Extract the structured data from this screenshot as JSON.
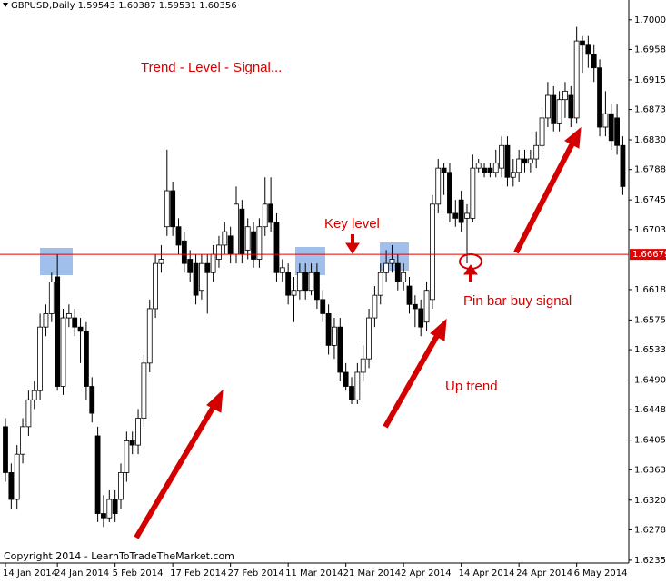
{
  "chart_data": {
    "type": "candlestick",
    "title": "GBPUSD,Daily 1.59543 1.60387 1.59531 1.60356",
    "annotations": [
      "Trend - Level - Signal...",
      "Key level",
      "Pin bar buy signal",
      "Up trend"
    ],
    "copyright": "Copyright 2014 - LearnToTradeTheMarket.com",
    "categories": [
      "14 Jan 2014",
      null,
      null,
      null,
      null,
      null,
      null,
      null,
      null,
      "24 Jan 2014",
      null,
      null,
      null,
      null,
      null,
      null,
      null,
      null,
      null,
      "5 Feb 2014",
      null,
      null,
      null,
      null,
      null,
      null,
      null,
      null,
      null,
      "17 Feb 2014",
      null,
      null,
      null,
      null,
      null,
      null,
      null,
      null,
      null,
      "27 Feb 2014",
      null,
      null,
      null,
      null,
      null,
      null,
      null,
      null,
      null,
      "11 Mar 2014",
      null,
      null,
      null,
      null,
      null,
      null,
      null,
      null,
      null,
      "21 Mar 2014",
      null,
      null,
      null,
      null,
      null,
      null,
      null,
      null,
      null,
      "2 Apr 2014",
      null,
      null,
      null,
      null,
      null,
      null,
      null,
      null,
      null,
      "14 Apr 2014",
      null,
      null,
      null,
      null,
      null,
      null,
      null,
      null,
      null,
      "24 Apr 2014",
      null,
      null,
      null,
      null,
      null,
      null,
      null,
      null,
      null,
      "6 May 2014",
      null,
      null,
      null,
      null,
      null,
      null,
      null,
      null
    ],
    "open": [
      1.6424,
      1.6359,
      1.6321,
      1.6385,
      1.6424,
      1.6462,
      1.6475,
      1.6565,
      1.6584,
      1.6636,
      1.6481,
      1.6578,
      1.6578,
      1.6565,
      1.6559,
      1.6481,
      1.6411,
      1.6301,
      1.6295,
      1.6321,
      1.6321,
      1.6359,
      1.6404,
      1.6398,
      1.6436,
      1.6514,
      1.6591,
      1.6655,
      1.6707,
      1.6758,
      1.6707,
      1.6687,
      1.6661,
      1.6655,
      1.6617,
      1.6655,
      1.6642,
      1.6661,
      1.6681,
      1.6694,
      1.6668,
      1.6732,
      1.6674,
      1.67,
      1.6661,
      1.6707,
      1.6739,
      1.6713,
      1.6642,
      1.6642,
      1.661,
      1.6617,
      1.6642,
      1.6617,
      1.6642,
      1.6604,
      1.6584,
      1.6539,
      1.6565,
      1.6501,
      1.6481,
      1.6462,
      1.6501,
      1.652,
      1.6578,
      1.661,
      1.6642,
      1.6655,
      1.6655,
      1.6629,
      1.6623,
      1.6597,
      1.6591,
      1.6572,
      1.6604,
      1.6739,
      1.679,
      1.6784,
      1.6726,
      1.6745,
      1.6719,
      1.6719,
      1.679,
      1.679,
      1.679,
      1.6784,
      1.679,
      1.6822,
      1.6777,
      1.6784,
      1.6803,
      1.6797,
      1.6803,
      1.6822,
      1.6861,
      1.6893,
      1.6854,
      1.6887,
      1.6893,
      1.6861,
      1.697,
      1.6964,
      1.6951,
      1.6932,
      1.6848,
      1.6867,
      1.6861,
      1.6822
    ],
    "high": [
      1.6436,
      1.6372,
      1.6398,
      1.6436,
      1.6475,
      1.6488,
      1.6584,
      1.6597,
      1.6642,
      1.6668,
      1.6591,
      1.6597,
      1.6591,
      1.6578,
      1.6572,
      1.6494,
      1.6424,
      1.6327,
      1.6334,
      1.6334,
      1.6372,
      1.6417,
      1.6417,
      1.6449,
      1.6526,
      1.6604,
      1.6668,
      1.6681,
      1.6816,
      1.6771,
      1.6719,
      1.67,
      1.6674,
      1.6668,
      1.6668,
      1.6668,
      1.6681,
      1.6694,
      1.6713,
      1.6707,
      1.6764,
      1.6745,
      1.6719,
      1.6713,
      1.6719,
      1.6777,
      1.6777,
      1.6726,
      1.6661,
      1.6655,
      1.6636,
      1.6655,
      1.6655,
      1.6655,
      1.6655,
      1.6617,
      1.6597,
      1.6578,
      1.6578,
      1.6514,
      1.6494,
      1.6514,
      1.6539,
      1.6591,
      1.6623,
      1.6655,
      1.6674,
      1.6681,
      1.6668,
      1.6655,
      1.6636,
      1.661,
      1.6604,
      1.6629,
      1.6752,
      1.6803,
      1.6797,
      1.6797,
      1.6745,
      1.6758,
      1.6739,
      1.6809,
      1.6803,
      1.6797,
      1.6797,
      1.6816,
      1.6835,
      1.6835,
      1.6803,
      1.6816,
      1.6816,
      1.6816,
      1.6842,
      1.6874,
      1.6912,
      1.6906,
      1.6899,
      1.6912,
      1.6906,
      1.699,
      1.6977,
      1.6977,
      1.6964,
      1.6944,
      1.6899,
      1.688,
      1.688,
      1.6835
    ],
    "low": [
      1.6346,
      1.6308,
      1.6308,
      1.6372,
      1.6411,
      1.6449,
      1.6462,
      1.6552,
      1.6572,
      1.6475,
      1.6469,
      1.6565,
      1.6552,
      1.6514,
      1.6462,
      1.643,
      1.6289,
      1.6282,
      1.6289,
      1.6289,
      1.6308,
      1.6346,
      1.6385,
      1.6385,
      1.6424,
      1.6501,
      1.6578,
      1.6642,
      1.6694,
      1.6694,
      1.6668,
      1.6642,
      1.6629,
      1.6597,
      1.6604,
      1.6584,
      1.6629,
      1.6649,
      1.6668,
      1.6655,
      1.6655,
      1.6655,
      1.6661,
      1.6649,
      1.6649,
      1.6694,
      1.67,
      1.6629,
      1.6629,
      1.6597,
      1.6572,
      1.6604,
      1.6604,
      1.661,
      1.6591,
      1.6572,
      1.6526,
      1.652,
      1.6488,
      1.6475,
      1.6456,
      1.6456,
      1.6488,
      1.6507,
      1.6565,
      1.6597,
      1.6629,
      1.6642,
      1.6617,
      1.6617,
      1.6584,
      1.6565,
      1.6552,
      1.6559,
      1.6591,
      1.6726,
      1.6752,
      1.6713,
      1.6707,
      1.67,
      1.6655,
      1.6713,
      1.6784,
      1.6777,
      1.6777,
      1.6777,
      1.6777,
      1.6764,
      1.6764,
      1.6771,
      1.6784,
      1.6784,
      1.679,
      1.6809,
      1.6848,
      1.6842,
      1.6842,
      1.6861,
      1.6848,
      1.6854,
      1.6925,
      1.6932,
      1.6912,
      1.6835,
      1.6835,
      1.6816,
      1.6809,
      1.6752
    ],
    "close": [
      1.6359,
      1.6321,
      1.6385,
      1.6424,
      1.6462,
      1.6475,
      1.6565,
      1.6584,
      1.6629,
      1.6481,
      1.6578,
      1.6584,
      1.6565,
      1.6559,
      1.6481,
      1.6443,
      1.6301,
      1.6295,
      1.6321,
      1.6301,
      1.6359,
      1.6404,
      1.6398,
      1.6436,
      1.6514,
      1.6591,
      1.6655,
      1.6661,
      1.6758,
      1.6707,
      1.6681,
      1.6655,
      1.6642,
      1.661,
      1.6655,
      1.6642,
      1.6668,
      1.6681,
      1.67,
      1.6668,
      1.6739,
      1.6668,
      1.6707,
      1.6661,
      1.6707,
      1.6739,
      1.6713,
      1.6642,
      1.6649,
      1.661,
      1.6617,
      1.6642,
      1.6617,
      1.6642,
      1.6604,
      1.6584,
      1.6539,
      1.6565,
      1.6501,
      1.6481,
      1.6462,
      1.6501,
      1.652,
      1.6578,
      1.661,
      1.6642,
      1.6655,
      1.6661,
      1.6629,
      1.6642,
      1.6597,
      1.6591,
      1.6565,
      1.6617,
      1.6739,
      1.679,
      1.6784,
      1.6726,
      1.6719,
      1.6713,
      1.6726,
      1.679,
      1.6797,
      1.6784,
      1.6784,
      1.6797,
      1.6822,
      1.6777,
      1.6784,
      1.6803,
      1.6797,
      1.6803,
      1.6822,
      1.6861,
      1.6893,
      1.6854,
      1.6887,
      1.6899,
      1.6861,
      1.697,
      1.6964,
      1.6951,
      1.6932,
      1.6848,
      1.6867,
      1.6829,
      1.6822,
      1.6764
    ],
    "up_color": "#ffffff",
    "down_color": "#000000",
    "level": 1.66679,
    "level_color": "#e00000",
    "ylim": [
      1.6231,
      1.7028
    ],
    "yticks": [
      {
        "value": 1.7,
        "label": "1.70000"
      },
      {
        "value": 1.6958,
        "label": "1.69580"
      },
      {
        "value": 1.6915,
        "label": "1.69150"
      },
      {
        "value": 1.6873,
        "label": "1.68730"
      },
      {
        "value": 1.683,
        "label": "1.68300"
      },
      {
        "value": 1.6788,
        "label": "1.67880"
      },
      {
        "value": 1.6745,
        "label": "1.67450"
      },
      {
        "value": 1.6703,
        "label": "1.67030"
      },
      {
        "value": 1.6618,
        "label": "1.66180"
      },
      {
        "value": 1.6575,
        "label": "1.65750"
      },
      {
        "value": 1.6533,
        "label": "1.65330"
      },
      {
        "value": 1.649,
        "label": "1.64900"
      },
      {
        "value": 1.6448,
        "label": "1.64480"
      },
      {
        "value": 1.6405,
        "label": "1.64050"
      },
      {
        "value": 1.6363,
        "label": "1.63630"
      },
      {
        "value": 1.632,
        "label": "1.63200"
      },
      {
        "value": 1.6278,
        "label": "1.62780"
      },
      {
        "value": 1.6235,
        "label": "1.62350"
      }
    ],
    "grid": false
  }
}
